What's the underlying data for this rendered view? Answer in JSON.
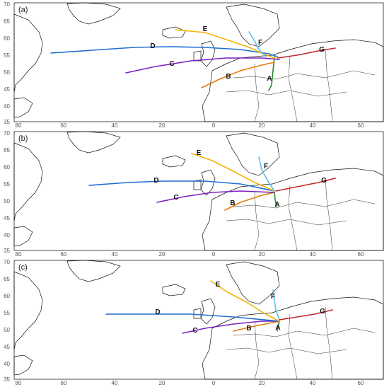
{
  "panels": [
    {
      "label": "(a)",
      "routes": [
        {
          "id": "A",
          "color": "#2e8b2e",
          "label": "A"
        },
        {
          "id": "B",
          "color": "#e8780e",
          "label": "B"
        },
        {
          "id": "C",
          "color": "#7f1fbf",
          "label": "C"
        },
        {
          "id": "D",
          "color": "#1f6fd1",
          "label": "D"
        },
        {
          "id": "E",
          "color": "#f4b400",
          "label": "E"
        },
        {
          "id": "F",
          "color": "#5bbcf0",
          "label": "F"
        },
        {
          "id": "G",
          "color": "#c0262d",
          "label": "G"
        }
      ]
    },
    {
      "label": "(b)",
      "routes": [
        {
          "id": "A",
          "color": "#2e8b2e",
          "label": "A"
        },
        {
          "id": "B",
          "color": "#e8780e",
          "label": "B"
        },
        {
          "id": "C",
          "color": "#7f1fbf",
          "label": "C"
        },
        {
          "id": "D",
          "color": "#1f6fd1",
          "label": "D"
        },
        {
          "id": "E",
          "color": "#f4b400",
          "label": "E"
        },
        {
          "id": "F",
          "color": "#5bbcf0",
          "label": "F"
        },
        {
          "id": "G",
          "color": "#c0262d",
          "label": "G"
        }
      ]
    },
    {
      "label": "(c)",
      "routes": [
        {
          "id": "A",
          "color": "#2e8b2e",
          "label": "A"
        },
        {
          "id": "B",
          "color": "#e8780e",
          "label": "B"
        },
        {
          "id": "C",
          "color": "#7f1fbf",
          "label": "C"
        },
        {
          "id": "D",
          "color": "#1f6fd1",
          "label": "D"
        },
        {
          "id": "E",
          "color": "#f4b400",
          "label": "E"
        },
        {
          "id": "F",
          "color": "#5bbcf0",
          "label": "F"
        },
        {
          "id": "G",
          "color": "#c0262d",
          "label": "G"
        }
      ]
    }
  ],
  "axes": {
    "x_ticks": [
      "80",
      "60",
      "40",
      "20",
      "0",
      "20",
      "40",
      "60"
    ],
    "y_ticks": [
      "70",
      "65",
      "60",
      "55",
      "50",
      "45",
      "40",
      "35"
    ]
  }
}
